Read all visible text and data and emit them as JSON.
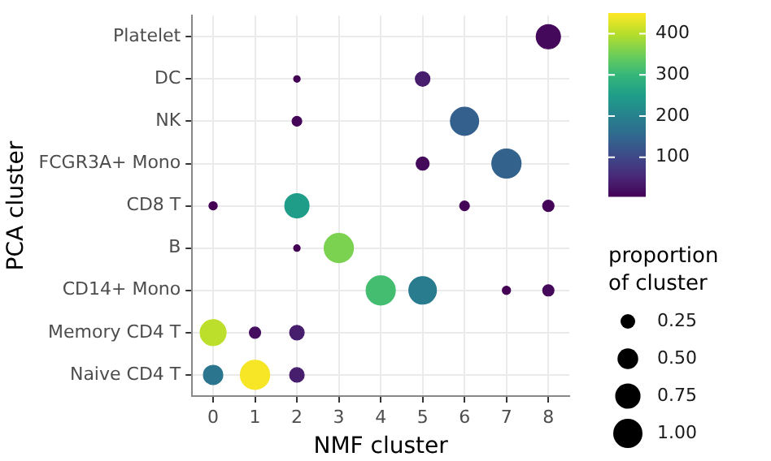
{
  "chart_data": {
    "type": "bubble",
    "orientation": "horizontal",
    "xlabel": "NMF cluster",
    "ylabel": "PCA cluster",
    "legend_title": "proportion of cluster",
    "grid": true,
    "categories": [
      "Platelet",
      "DC",
      "NK",
      "FCGR3A+ Mono",
      "CD8 T",
      "B",
      "CD14+ Mono",
      "Memory CD4 T",
      "Naive CD4 T"
    ],
    "series": [
      {
        "values": [
          null,
          null,
          null,
          null,
          0,
          null,
          null,
          0,
          0
        ],
        "sizes": [
          null,
          null,
          null,
          null,
          0.08,
          null,
          null,
          0.79,
          0.44
        ],
        "cvalues": [
          null,
          null,
          null,
          null,
          5,
          null,
          null,
          405,
          180
        ],
        "colors": [
          null,
          null,
          null,
          null,
          "#440154",
          null,
          null,
          "#bbdf2a",
          "#2b768e"
        ]
      },
      {
        "values": [
          null,
          null,
          null,
          null,
          null,
          null,
          null,
          1,
          1
        ],
        "sizes": [
          null,
          null,
          null,
          null,
          null,
          null,
          null,
          0.15,
          1.0
        ],
        "cvalues": [
          null,
          null,
          null,
          null,
          null,
          null,
          null,
          20,
          445
        ],
        "colors": [
          null,
          null,
          null,
          null,
          null,
          null,
          null,
          "#450d5f",
          "#f6e626"
        ]
      },
      {
        "values": [
          null,
          2,
          2,
          null,
          2,
          2,
          null,
          2,
          2
        ],
        "sizes": [
          null,
          0.05,
          0.11,
          null,
          0.69,
          0.05,
          null,
          0.25,
          0.25
        ],
        "cvalues": [
          null,
          5,
          10,
          null,
          250,
          5,
          null,
          40,
          40
        ],
        "colors": [
          null,
          "#440154",
          "#440558",
          null,
          "#1f9d89",
          "#440154",
          null,
          "#471d6e",
          "#471d6e"
        ]
      },
      {
        "values": [
          null,
          null,
          null,
          null,
          null,
          3,
          null,
          null,
          null
        ],
        "sizes": [
          null,
          null,
          null,
          null,
          null,
          1.0,
          null,
          null,
          null
        ],
        "cvalues": [
          null,
          null,
          null,
          null,
          null,
          360,
          null,
          null,
          null
        ],
        "colors": [
          null,
          null,
          null,
          null,
          null,
          "#7bd150",
          null,
          null,
          null
        ]
      },
      {
        "values": [
          null,
          null,
          null,
          null,
          null,
          null,
          4,
          null,
          null
        ],
        "sizes": [
          null,
          null,
          null,
          null,
          null,
          null,
          1.0,
          null,
          null
        ],
        "cvalues": [
          null,
          null,
          null,
          null,
          null,
          null,
          315,
          null,
          null
        ],
        "colors": [
          null,
          null,
          null,
          null,
          null,
          null,
          "#44bd70",
          null,
          null
        ]
      },
      {
        "values": [
          null,
          5,
          null,
          5,
          null,
          null,
          5,
          null,
          null
        ],
        "sizes": [
          null,
          0.25,
          null,
          0.2,
          null,
          null,
          0.89,
          null,
          null
        ],
        "cvalues": [
          null,
          40,
          null,
          15,
          null,
          null,
          190,
          null,
          null
        ],
        "colors": [
          null,
          "#471d6e",
          null,
          "#45095b",
          null,
          null,
          "#297b8e",
          null,
          null
        ]
      },
      {
        "values": [
          null,
          null,
          6,
          null,
          6,
          null,
          null,
          null,
          null
        ],
        "sizes": [
          null,
          null,
          0.93,
          null,
          0.11,
          null,
          null,
          null,
          null
        ],
        "cvalues": [
          null,
          null,
          140,
          null,
          10,
          null,
          null,
          null,
          null
        ],
        "colors": [
          null,
          null,
          "#34608d",
          null,
          "#440558",
          null,
          null,
          null,
          null
        ]
      },
      {
        "values": [
          null,
          null,
          null,
          7,
          null,
          null,
          7,
          null,
          null
        ],
        "sizes": [
          null,
          null,
          null,
          1.0,
          null,
          null,
          0.08,
          null,
          null
        ],
        "cvalues": [
          null,
          null,
          null,
          145,
          null,
          null,
          5,
          null,
          null
        ],
        "colors": [
          null,
          null,
          null,
          "#33638d",
          null,
          null,
          "#440154",
          null,
          null
        ]
      },
      {
        "values": [
          8,
          null,
          null,
          null,
          8,
          null,
          8,
          null,
          null
        ],
        "sizes": [
          0.69,
          null,
          null,
          null,
          0.15,
          null,
          0.15,
          null,
          null
        ],
        "cvalues": [
          15,
          null,
          null,
          null,
          10,
          null,
          15,
          null,
          null
        ],
        "colors": [
          "#45095b",
          null,
          null,
          null,
          "#440558",
          null,
          "#45095b",
          null,
          null
        ]
      }
    ],
    "clim": [
      5,
      450
    ],
    "cticks": [
      100,
      200,
      300,
      400
    ],
    "size_legend": [
      0.25,
      {
        "value": 0.5,
        "label": "0.50"
      },
      0.75,
      {
        "value": 1,
        "label": "1.00"
      }
    ],
    "xlim": [
      -0.5,
      8.5
    ],
    "xticks": [
      0,
      1,
      2,
      3,
      4,
      5,
      6,
      7,
      8
    ]
  }
}
